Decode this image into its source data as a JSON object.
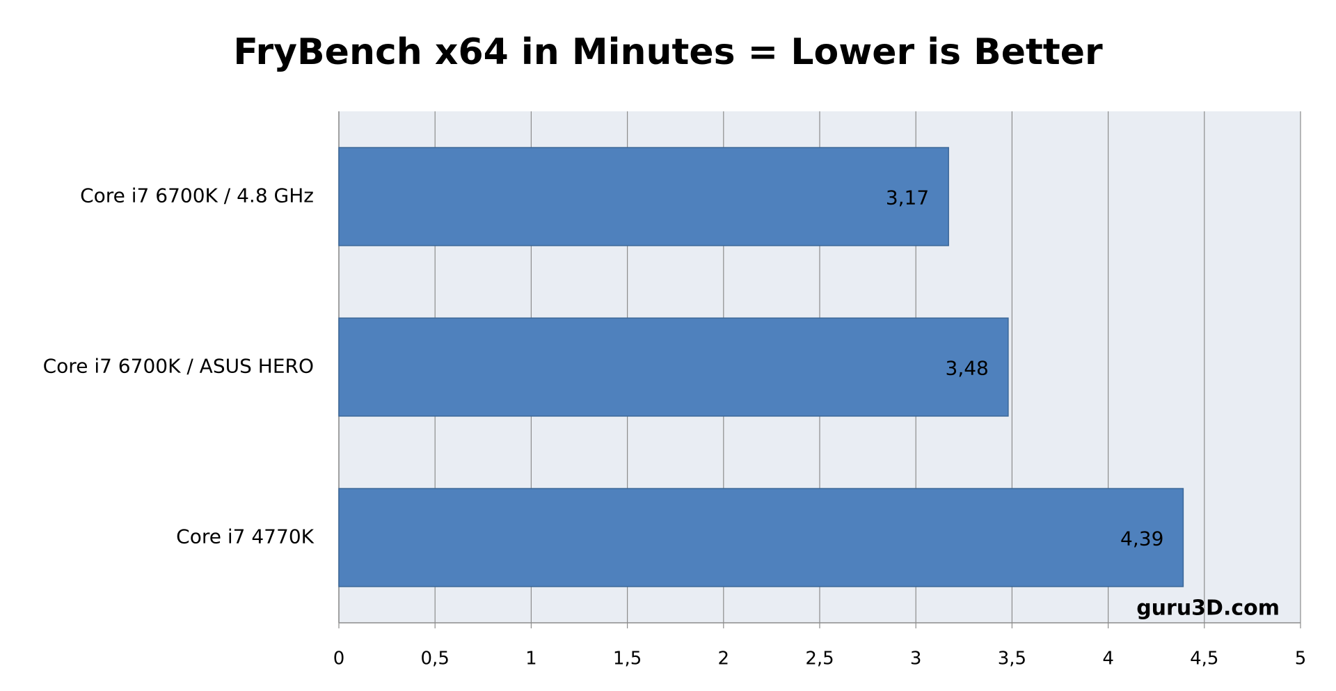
{
  "chart_data": {
    "type": "bar",
    "orientation": "horizontal",
    "title": "FryBench x64 in Minutes = Lower is Better",
    "categories": [
      "Core i7 6700K / 4.8 GHz",
      "Core i7 6700K / ASUS HERO",
      "Core i7 4770K"
    ],
    "values": [
      3.17,
      3.48,
      4.39
    ],
    "value_labels": [
      "3,17",
      "3,48",
      "4,39"
    ],
    "color": "#4f81bd",
    "xlim": [
      0,
      5
    ],
    "xticks": [
      0,
      {
        "value": 0.5,
        "label": "0,5"
      },
      1,
      {
        "value": 1.5,
        "label": "1,5"
      },
      2,
      {
        "value": 2.5,
        "label": "2,5"
      },
      3,
      {
        "value": 3.5,
        "label": "3,5"
      },
      4,
      {
        "value": 4.5,
        "label": "4,5"
      },
      5
    ],
    "grid": true,
    "watermark": "guru3D.com"
  }
}
